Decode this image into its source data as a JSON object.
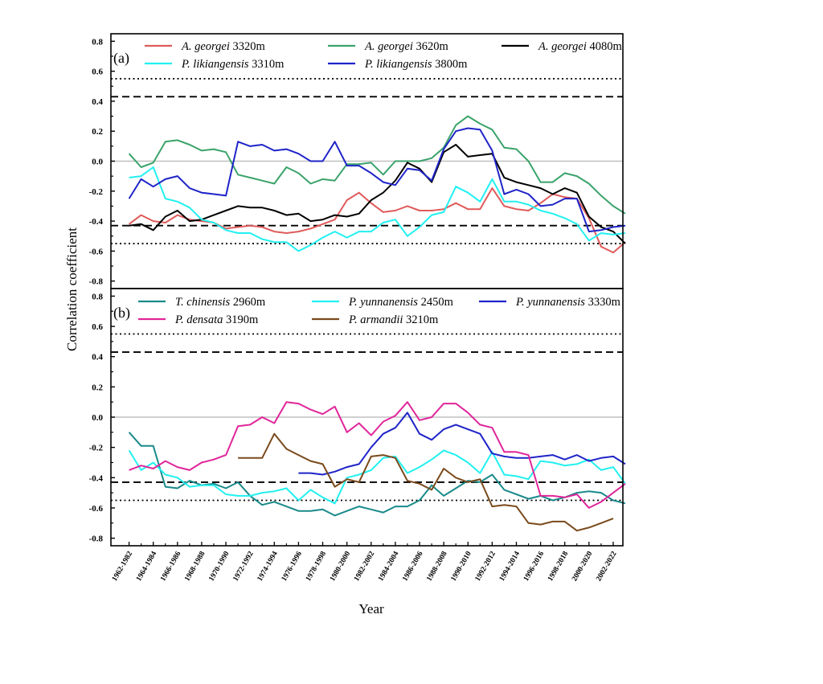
{
  "figure": {
    "ylabel": "Correlation coefficient",
    "xlabel": "Year"
  },
  "chart_data": [
    {
      "type": "line",
      "panel_label": "(a)",
      "ylim": [
        -0.85,
        0.85
      ],
      "yticks": [
        -0.8,
        -0.6,
        -0.4,
        -0.2,
        0.0,
        0.2,
        0.4,
        0.6,
        0.8
      ],
      "ytick_labels": [
        "-0.8",
        "-0.6",
        "-0.4",
        "-0.2",
        "0.0",
        "0.2",
        "0.4",
        "0.6",
        "0.8"
      ],
      "x_start": 1962,
      "xlim": [
        1960.5,
        2002.8
      ],
      "reference_lines": [
        {
          "value": 0.55,
          "style": "dotted",
          "color": "#000000"
        },
        {
          "value": 0.43,
          "style": "dashed",
          "color": "#000000"
        },
        {
          "value": 0.0,
          "style": "solid",
          "color": "#c0c0c0"
        },
        {
          "value": -0.43,
          "style": "dashed",
          "color": "#000000"
        },
        {
          "value": -0.55,
          "style": "dotted",
          "color": "#000000"
        }
      ],
      "series": [
        {
          "species": "A. georgei",
          "elevation": "3320m",
          "color": "#e05a5a",
          "values": [
            -0.42,
            -0.36,
            -0.4,
            -0.41,
            -0.36,
            -0.39,
            -0.4,
            -0.41,
            -0.45,
            -0.44,
            -0.43,
            -0.44,
            -0.47,
            -0.48,
            -0.47,
            -0.45,
            -0.42,
            -0.39,
            -0.26,
            -0.21,
            -0.28,
            -0.34,
            -0.33,
            -0.3,
            -0.33,
            -0.33,
            -0.32,
            -0.28,
            -0.32,
            -0.32,
            -0.18,
            -0.3,
            -0.32,
            -0.33,
            -0.28,
            -0.22,
            -0.24,
            -0.25,
            -0.38,
            -0.57,
            -0.61,
            -0.54
          ]
        },
        {
          "species": "A. georgei",
          "elevation": "3620m",
          "color": "#3aa36a",
          "values": [
            0.05,
            -0.04,
            -0.01,
            0.13,
            0.14,
            0.11,
            0.07,
            0.08,
            0.06,
            -0.09,
            -0.11,
            -0.13,
            -0.15,
            -0.04,
            -0.08,
            -0.15,
            -0.12,
            -0.13,
            -0.02,
            -0.02,
            -0.01,
            -0.09,
            0.0,
            0.0,
            0.0,
            0.02,
            0.09,
            0.24,
            0.3,
            0.25,
            0.21,
            0.09,
            0.08,
            0.0,
            -0.14,
            -0.14,
            -0.08,
            -0.1,
            -0.15,
            -0.23,
            -0.3,
            -0.35
          ]
        },
        {
          "species": "A. georgei",
          "elevation": "4080m",
          "color": "#000000",
          "values": [
            -0.43,
            -0.42,
            -0.46,
            -0.37,
            -0.33,
            -0.4,
            -0.39,
            -0.36,
            -0.33,
            -0.3,
            -0.31,
            -0.31,
            -0.33,
            -0.36,
            -0.35,
            -0.4,
            -0.39,
            -0.36,
            -0.37,
            -0.35,
            -0.26,
            -0.21,
            -0.13,
            -0.01,
            -0.05,
            -0.14,
            0.06,
            0.11,
            0.03,
            0.04,
            0.05,
            -0.11,
            -0.14,
            -0.16,
            -0.18,
            -0.22,
            -0.18,
            -0.21,
            -0.37,
            -0.44,
            -0.47,
            -0.55
          ]
        },
        {
          "species": "P. likiangensis",
          "elevation": "3310m",
          "color": "#22f0f0",
          "values": [
            -0.11,
            -0.1,
            -0.04,
            -0.25,
            -0.27,
            -0.31,
            -0.39,
            -0.41,
            -0.46,
            -0.48,
            -0.48,
            -0.52,
            -0.54,
            -0.54,
            -0.6,
            -0.56,
            -0.51,
            -0.47,
            -0.51,
            -0.47,
            -0.47,
            -0.41,
            -0.39,
            -0.5,
            -0.44,
            -0.36,
            -0.34,
            -0.17,
            -0.21,
            -0.27,
            -0.12,
            -0.27,
            -0.27,
            -0.29,
            -0.33,
            -0.35,
            -0.38,
            -0.42,
            -0.53,
            -0.48,
            -0.49,
            -0.48
          ]
        },
        {
          "species": "P. likiangensis",
          "elevation": "3800m",
          "color": "#1f24c8",
          "values": [
            -0.25,
            -0.12,
            -0.17,
            -0.12,
            -0.1,
            -0.18,
            -0.21,
            -0.22,
            -0.23,
            0.13,
            0.1,
            0.11,
            0.07,
            0.08,
            0.05,
            0.0,
            0.0,
            0.13,
            -0.03,
            -0.03,
            -0.08,
            -0.14,
            -0.16,
            -0.05,
            -0.06,
            -0.13,
            0.08,
            0.2,
            0.22,
            0.21,
            0.07,
            -0.22,
            -0.19,
            -0.22,
            -0.3,
            -0.29,
            -0.25,
            -0.25,
            -0.47,
            -0.46,
            -0.44,
            -0.43
          ]
        }
      ]
    },
    {
      "type": "line",
      "panel_label": "(b)",
      "ylim": [
        -0.85,
        0.85
      ],
      "yticks": [
        -0.8,
        -0.6,
        -0.4,
        -0.2,
        0.0,
        0.2,
        0.4,
        0.6,
        0.8
      ],
      "ytick_labels": [
        "-0.8",
        "-0.6",
        "-0.4",
        "-0.2",
        "0.0",
        "0.2",
        "0.4",
        "0.6",
        "0.8"
      ],
      "x_start": 1962,
      "xlim": [
        1960.5,
        2002.8
      ],
      "xticks": [
        1962,
        1964,
        1966,
        1968,
        1970,
        1972,
        1974,
        1976,
        1978,
        1980,
        1982,
        1984,
        1986,
        1988,
        1990,
        1992,
        1994,
        1996,
        1998,
        2000,
        2002
      ],
      "xtick_labels": [
        "1962-1982",
        "1964-1984",
        "1966-1986",
        "1968-1988",
        "1970-1990",
        "1972-1992",
        "1974-1994",
        "1976-1996",
        "1978-1998",
        "1980-2000",
        "1982-2002",
        "1984-2004",
        "1986-2006",
        "1988-2008",
        "1990-2010",
        "1992-2012",
        "1994-2014",
        "1996-2016",
        "1998-2018",
        "2000-2020",
        "2002-2022"
      ],
      "reference_lines": [
        {
          "value": 0.55,
          "style": "dotted",
          "color": "#000000"
        },
        {
          "value": 0.43,
          "style": "dashed",
          "color": "#000000"
        },
        {
          "value": 0.0,
          "style": "solid",
          "color": "#c0c0c0"
        },
        {
          "value": -0.43,
          "style": "dashed",
          "color": "#000000"
        },
        {
          "value": -0.55,
          "style": "dotted",
          "color": "#000000"
        }
      ],
      "series": [
        {
          "species": "T. chinensis",
          "elevation": "2960m",
          "color": "#1a8a8a",
          "x_offset": 0,
          "values": [
            -0.1,
            -0.19,
            -0.19,
            -0.46,
            -0.47,
            -0.42,
            -0.45,
            -0.44,
            -0.47,
            -0.43,
            -0.52,
            -0.58,
            -0.56,
            -0.59,
            -0.62,
            -0.62,
            -0.61,
            -0.65,
            -0.62,
            -0.59,
            -0.61,
            -0.63,
            -0.59,
            -0.59,
            -0.55,
            -0.45,
            -0.52,
            -0.47,
            -0.42,
            -0.43,
            -0.38,
            -0.48,
            -0.51,
            -0.54,
            -0.52,
            -0.55,
            -0.53,
            -0.5,
            -0.49,
            -0.5,
            -0.55,
            -0.57
          ]
        },
        {
          "species": "P. yunnanensis",
          "elevation": "2450m",
          "color": "#22f0f0",
          "x_offset": 0,
          "values": [
            -0.22,
            -0.35,
            -0.3,
            -0.38,
            -0.4,
            -0.46,
            -0.45,
            -0.45,
            -0.51,
            -0.52,
            -0.52,
            -0.5,
            -0.49,
            -0.47,
            -0.55,
            -0.48,
            -0.53,
            -0.57,
            -0.4,
            -0.38,
            -0.35,
            -0.27,
            -0.26,
            -0.37,
            -0.33,
            -0.28,
            -0.22,
            -0.25,
            -0.3,
            -0.37,
            -0.23,
            -0.38,
            -0.39,
            -0.41,
            -0.29,
            -0.3,
            -0.32,
            -0.31,
            -0.28,
            -0.35,
            -0.33,
            -0.44
          ]
        },
        {
          "species": "P. yunnanensis",
          "elevation": "3330m",
          "color": "#1f24c8",
          "x_offset": 14,
          "values": [
            -0.37,
            -0.37,
            -0.38,
            -0.36,
            -0.33,
            -0.31,
            -0.2,
            -0.11,
            -0.07,
            0.03,
            -0.11,
            -0.15,
            -0.08,
            -0.05,
            -0.08,
            -0.11,
            -0.24,
            -0.26,
            -0.27,
            -0.27,
            -0.26,
            -0.25,
            -0.28,
            -0.25,
            -0.29,
            -0.27,
            -0.26,
            -0.31
          ]
        },
        {
          "species": "P. densata",
          "elevation": "3190m",
          "color": "#e0259a",
          "x_offset": 0,
          "values": [
            -0.35,
            -0.32,
            -0.34,
            -0.29,
            -0.33,
            -0.35,
            -0.3,
            -0.28,
            -0.25,
            -0.06,
            -0.05,
            0.0,
            -0.04,
            0.1,
            0.09,
            0.05,
            0.02,
            0.07,
            -0.1,
            -0.04,
            -0.12,
            -0.03,
            0.01,
            0.1,
            -0.02,
            0.0,
            0.09,
            0.09,
            0.03,
            -0.05,
            -0.07,
            -0.23,
            -0.23,
            -0.25,
            -0.52,
            -0.52,
            -0.53,
            -0.51,
            -0.6,
            -0.56,
            -0.5,
            -0.44
          ]
        },
        {
          "species": "P. armandii",
          "elevation": "3210m",
          "color": "#7a4a1c",
          "x_offset": 9,
          "values": [
            -0.27,
            -0.27,
            -0.27,
            -0.11,
            -0.21,
            -0.25,
            -0.29,
            -0.31,
            -0.46,
            -0.41,
            -0.43,
            -0.26,
            -0.25,
            -0.27,
            -0.42,
            -0.44,
            -0.48,
            -0.34,
            -0.4,
            -0.43,
            -0.41,
            -0.59,
            -0.58,
            -0.59,
            -0.7,
            -0.71,
            -0.69,
            -0.69,
            -0.75,
            -0.73,
            -0.7,
            -0.67
          ]
        }
      ]
    }
  ]
}
